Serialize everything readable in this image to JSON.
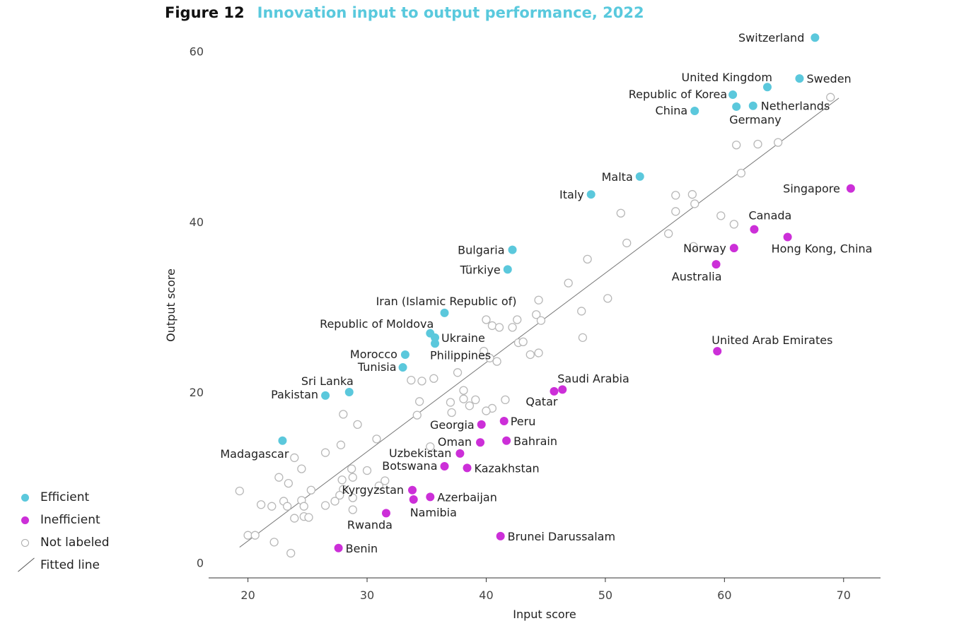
{
  "figure": {
    "label": "Figure 12",
    "title": "Innovation input to output performance, 2022"
  },
  "legend": {
    "efficient": "Efficient",
    "inefficient": "Inefficient",
    "not_labeled": "Not labeled",
    "fitted_line": "Fitted line"
  },
  "colors": {
    "efficient": "#5bc8dc",
    "inefficient": "#cc2fd8",
    "not_labeled": "#b8b8b8",
    "fitted_line": "#777777",
    "title": "#59c9dd"
  },
  "chart_data": {
    "type": "scatter",
    "xlabel": "Input score",
    "ylabel": "Output score",
    "xlim": [
      16.7,
      73.1
    ],
    "ylim": [
      -1.8,
      62.2
    ],
    "xticks": [
      20,
      30,
      40,
      50,
      60,
      70
    ],
    "yticks": [
      0,
      20,
      40,
      60
    ],
    "grid": false,
    "legend_position": "bottom-left",
    "fitted_line": {
      "x": [
        19.3,
        69.6
      ],
      "y": [
        1.8,
        54.5
      ]
    },
    "labeled": [
      {
        "name": "Switzerland",
        "x": 67.6,
        "y": 61.6,
        "group": "efficient"
      },
      {
        "name": "Sweden",
        "x": 66.3,
        "y": 56.8,
        "group": "efficient"
      },
      {
        "name": "United Kingdom",
        "x": 63.6,
        "y": 55.8,
        "group": "efficient"
      },
      {
        "name": "Republic of Korea",
        "x": 60.7,
        "y": 54.9,
        "group": "efficient"
      },
      {
        "name": "Netherlands",
        "x": 62.4,
        "y": 53.6,
        "group": "efficient"
      },
      {
        "name": "Germany",
        "x": 61.0,
        "y": 53.5,
        "group": "efficient"
      },
      {
        "name": "China",
        "x": 57.5,
        "y": 53.0,
        "group": "efficient"
      },
      {
        "name": "Malta",
        "x": 52.9,
        "y": 45.3,
        "group": "efficient"
      },
      {
        "name": "Italy",
        "x": 48.8,
        "y": 43.2,
        "group": "efficient"
      },
      {
        "name": "Bulgaria",
        "x": 42.2,
        "y": 36.7,
        "group": "efficient"
      },
      {
        "name": "Türkiye",
        "x": 41.8,
        "y": 34.4,
        "group": "efficient"
      },
      {
        "name": "Iran (Islamic Republic of)",
        "x": 36.5,
        "y": 29.3,
        "group": "efficient"
      },
      {
        "name": "Republic of Moldova",
        "x": 35.3,
        "y": 26.9,
        "group": "efficient"
      },
      {
        "name": "Ukraine",
        "x": 35.7,
        "y": 26.4,
        "group": "efficient"
      },
      {
        "name": "Philippines",
        "x": 35.7,
        "y": 25.7,
        "group": "efficient"
      },
      {
        "name": "Morocco",
        "x": 33.2,
        "y": 24.4,
        "group": "efficient"
      },
      {
        "name": "Tunisia",
        "x": 33.0,
        "y": 22.9,
        "group": "efficient"
      },
      {
        "name": "Sri Lanka",
        "x": 28.5,
        "y": 20.0,
        "group": "efficient"
      },
      {
        "name": "Pakistan",
        "x": 26.5,
        "y": 19.6,
        "group": "efficient"
      },
      {
        "name": "Madagascar",
        "x": 22.9,
        "y": 14.3,
        "group": "efficient"
      },
      {
        "name": "Singapore",
        "x": 70.6,
        "y": 43.9,
        "group": "inefficient"
      },
      {
        "name": "Canada",
        "x": 62.5,
        "y": 39.1,
        "group": "inefficient"
      },
      {
        "name": "Hong Kong, China",
        "x": 65.3,
        "y": 38.2,
        "group": "inefficient"
      },
      {
        "name": "Norway",
        "x": 60.8,
        "y": 36.9,
        "group": "inefficient"
      },
      {
        "name": "Australia",
        "x": 59.3,
        "y": 35.0,
        "group": "inefficient"
      },
      {
        "name": "United Arab Emirates",
        "x": 59.4,
        "y": 24.8,
        "group": "inefficient"
      },
      {
        "name": "Saudi Arabia",
        "x": 46.4,
        "y": 20.3,
        "group": "inefficient"
      },
      {
        "name": "Qatar",
        "x": 45.7,
        "y": 20.1,
        "group": "inefficient"
      },
      {
        "name": "Peru",
        "x": 41.5,
        "y": 16.6,
        "group": "inefficient"
      },
      {
        "name": "Georgia",
        "x": 39.6,
        "y": 16.2,
        "group": "inefficient"
      },
      {
        "name": "Bahrain",
        "x": 41.7,
        "y": 14.3,
        "group": "inefficient"
      },
      {
        "name": "Oman",
        "x": 39.5,
        "y": 14.1,
        "group": "inefficient"
      },
      {
        "name": "Uzbekistan",
        "x": 37.8,
        "y": 12.8,
        "group": "inefficient"
      },
      {
        "name": "Botswana",
        "x": 36.5,
        "y": 11.3,
        "group": "inefficient"
      },
      {
        "name": "Kazakhstan",
        "x": 38.4,
        "y": 11.1,
        "group": "inefficient"
      },
      {
        "name": "Kyrgyzstan",
        "x": 33.8,
        "y": 8.5,
        "group": "inefficient"
      },
      {
        "name": "Azerbaijan",
        "x": 35.3,
        "y": 7.7,
        "group": "inefficient"
      },
      {
        "name": "Namibia",
        "x": 33.9,
        "y": 7.4,
        "group": "inefficient"
      },
      {
        "name": "Rwanda",
        "x": 31.6,
        "y": 5.8,
        "group": "inefficient"
      },
      {
        "name": "Brunei Darussalam",
        "x": 41.2,
        "y": 3.1,
        "group": "inefficient"
      },
      {
        "name": "Benin",
        "x": 27.6,
        "y": 1.7,
        "group": "inefficient"
      }
    ],
    "unlabeled": [
      [
        68.9,
        54.6
      ],
      [
        64.5,
        49.3
      ],
      [
        62.8,
        49.1
      ],
      [
        61.0,
        49.0
      ],
      [
        61.4,
        45.7
      ],
      [
        55.9,
        43.1
      ],
      [
        57.3,
        43.2
      ],
      [
        57.5,
        42.1
      ],
      [
        55.9,
        41.2
      ],
      [
        51.3,
        41.0
      ],
      [
        59.7,
        40.7
      ],
      [
        60.8,
        39.7
      ],
      [
        55.3,
        38.6
      ],
      [
        51.8,
        37.5
      ],
      [
        57.4,
        37.1
      ],
      [
        48.5,
        35.6
      ],
      [
        46.9,
        32.8
      ],
      [
        50.2,
        31.0
      ],
      [
        44.4,
        30.8
      ],
      [
        48.0,
        29.5
      ],
      [
        44.2,
        29.1
      ],
      [
        40.0,
        28.5
      ],
      [
        44.6,
        28.4
      ],
      [
        42.6,
        28.5
      ],
      [
        40.5,
        27.8
      ],
      [
        41.1,
        27.6
      ],
      [
        42.2,
        27.6
      ],
      [
        48.1,
        26.4
      ],
      [
        42.7,
        25.8
      ],
      [
        43.1,
        25.9
      ],
      [
        44.4,
        24.6
      ],
      [
        43.7,
        24.4
      ],
      [
        39.8,
        24.8
      ],
      [
        40.3,
        24.0
      ],
      [
        40.9,
        23.6
      ],
      [
        37.6,
        22.3
      ],
      [
        35.6,
        21.6
      ],
      [
        34.6,
        21.3
      ],
      [
        33.7,
        21.4
      ],
      [
        38.1,
        20.2
      ],
      [
        38.1,
        19.2
      ],
      [
        39.1,
        19.1
      ],
      [
        41.6,
        19.1
      ],
      [
        34.4,
        18.9
      ],
      [
        37.0,
        18.8
      ],
      [
        38.6,
        18.4
      ],
      [
        40.5,
        18.1
      ],
      [
        40.0,
        17.8
      ],
      [
        37.1,
        17.6
      ],
      [
        34.2,
        17.3
      ],
      [
        28.0,
        17.4
      ],
      [
        29.2,
        16.2
      ],
      [
        30.8,
        14.5
      ],
      [
        27.8,
        13.8
      ],
      [
        35.3,
        13.6
      ],
      [
        26.5,
        12.9
      ],
      [
        23.9,
        12.3
      ],
      [
        24.5,
        11.0
      ],
      [
        28.7,
        11.0
      ],
      [
        30.0,
        10.8
      ],
      [
        22.6,
        10.0
      ],
      [
        28.8,
        10.0
      ],
      [
        23.4,
        9.3
      ],
      [
        27.9,
        9.7
      ],
      [
        31.5,
        9.6
      ],
      [
        31.0,
        9.0
      ],
      [
        19.3,
        8.4
      ],
      [
        25.3,
        8.5
      ],
      [
        28.0,
        8.6
      ],
      [
        27.7,
        7.9
      ],
      [
        28.8,
        7.6
      ],
      [
        27.3,
        7.2
      ],
      [
        23.0,
        7.2
      ],
      [
        24.5,
        7.3
      ],
      [
        21.1,
        6.8
      ],
      [
        22.0,
        6.6
      ],
      [
        23.3,
        6.6
      ],
      [
        24.7,
        6.6
      ],
      [
        26.5,
        6.7
      ],
      [
        28.8,
        6.2
      ],
      [
        24.7,
        5.4
      ],
      [
        23.9,
        5.2
      ],
      [
        25.1,
        5.3
      ],
      [
        20.0,
        3.2
      ],
      [
        20.6,
        3.2
      ],
      [
        22.2,
        2.4
      ],
      [
        23.6,
        1.1
      ]
    ]
  }
}
